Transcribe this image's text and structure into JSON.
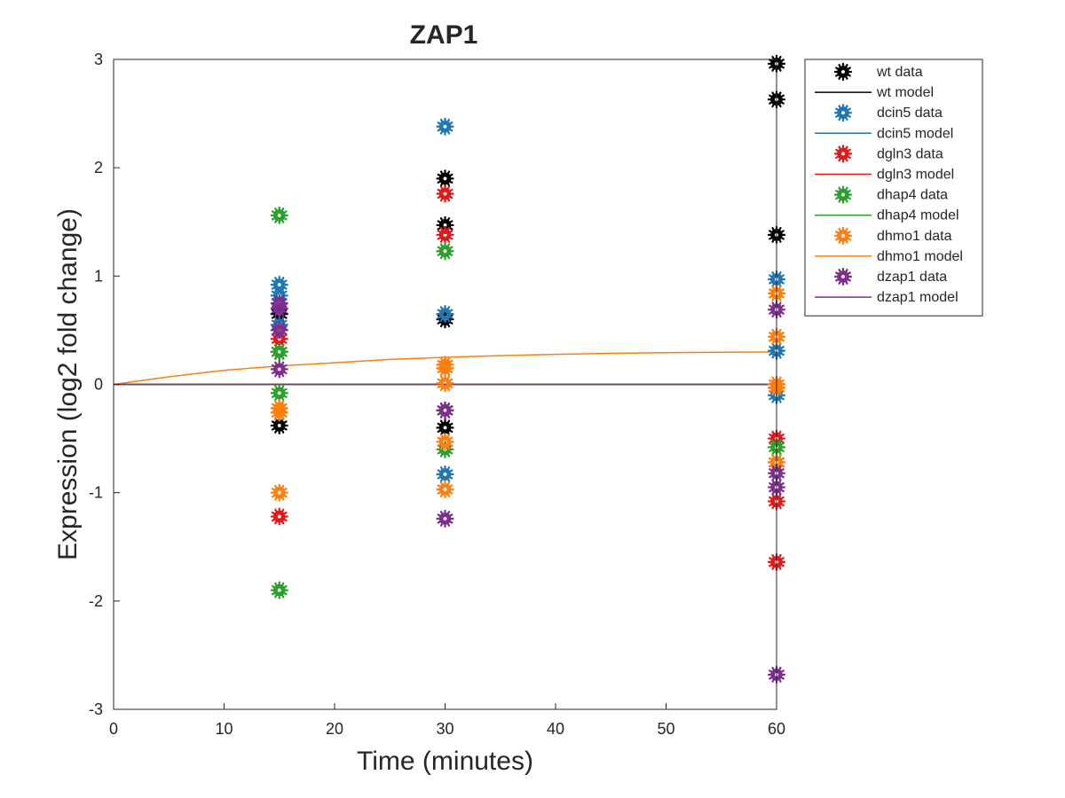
{
  "chart_data": {
    "type": "scatter",
    "title": "ZAP1",
    "xlabel": "Time (minutes)",
    "ylabel": "Expression (log2 fold change)",
    "xlim": [
      0,
      60
    ],
    "ylim": [
      -3,
      3
    ],
    "xticks": [
      0,
      10,
      20,
      30,
      40,
      50,
      60
    ],
    "yticks": [
      -3,
      -2,
      -1,
      0,
      1,
      2,
      3
    ],
    "grid": false,
    "legend_position": "outside-top-right",
    "series": [
      {
        "name": "wt data",
        "kind": "markers",
        "color": "#000000",
        "points": [
          [
            15,
            0.65
          ],
          [
            15,
            0.3
          ],
          [
            15,
            -0.38
          ],
          [
            30,
            1.9
          ],
          [
            30,
            1.47
          ],
          [
            30,
            0.6
          ],
          [
            30,
            -0.24
          ],
          [
            30,
            -0.4
          ],
          [
            60,
            2.96
          ],
          [
            60,
            2.63
          ],
          [
            60,
            1.38
          ],
          [
            60,
            -0.72
          ]
        ]
      },
      {
        "name": "wt model",
        "kind": "line",
        "color": "#000000",
        "points": [
          [
            0,
            0
          ],
          [
            60,
            0
          ]
        ]
      },
      {
        "name": "dcin5 data",
        "kind": "markers",
        "color": "#1f77b4",
        "points": [
          [
            15,
            0.92
          ],
          [
            15,
            0.82
          ],
          [
            15,
            0.55
          ],
          [
            30,
            2.38
          ],
          [
            30,
            0.65
          ],
          [
            30,
            -0.83
          ],
          [
            60,
            0.97
          ],
          [
            60,
            0.31
          ],
          [
            60,
            -0.1
          ]
        ]
      },
      {
        "name": "dcin5 model",
        "kind": "line",
        "color": "#1f77b4",
        "points": [
          [
            0,
            0
          ],
          [
            60,
            0
          ]
        ]
      },
      {
        "name": "dgln3 data",
        "kind": "markers",
        "color": "#e3191c",
        "points": [
          [
            15,
            0.5
          ],
          [
            15,
            0.42
          ],
          [
            15,
            -1.22
          ],
          [
            30,
            1.76
          ],
          [
            30,
            1.38
          ],
          [
            60,
            -0.5
          ],
          [
            60,
            -1.08
          ],
          [
            60,
            -1.64
          ]
        ]
      },
      {
        "name": "dgln3 model",
        "kind": "line",
        "color": "#e3191c",
        "points": [
          [
            0,
            0
          ],
          [
            60,
            0
          ]
        ]
      },
      {
        "name": "dhap4 data",
        "kind": "markers",
        "color": "#2ca02c",
        "points": [
          [
            15,
            1.56
          ],
          [
            15,
            0.3
          ],
          [
            15,
            -0.08
          ],
          [
            15,
            -1.9
          ],
          [
            30,
            1.23
          ],
          [
            30,
            -0.6
          ],
          [
            60,
            -0.58
          ]
        ]
      },
      {
        "name": "dhap4 model",
        "kind": "line",
        "color": "#2ca02c",
        "points": [
          [
            0,
            0
          ],
          [
            60,
            0
          ]
        ]
      },
      {
        "name": "dhmo1 data",
        "kind": "markers",
        "color": "#ff7f0e",
        "points": [
          [
            15,
            -0.22
          ],
          [
            15,
            -0.26
          ],
          [
            15,
            -1.0
          ],
          [
            30,
            0.18
          ],
          [
            30,
            0.15
          ],
          [
            30,
            0.01
          ],
          [
            30,
            -0.53
          ],
          [
            30,
            -0.97
          ],
          [
            60,
            0.84
          ],
          [
            60,
            0.44
          ],
          [
            60,
            0.0
          ],
          [
            60,
            -0.03
          ],
          [
            60,
            -0.72
          ]
        ]
      },
      {
        "name": "dhmo1 model",
        "kind": "line",
        "color": "#ff7f0e",
        "points": [
          [
            0,
            0
          ],
          [
            5,
            0.07
          ],
          [
            10,
            0.13
          ],
          [
            15,
            0.17
          ],
          [
            20,
            0.2
          ],
          [
            25,
            0.23
          ],
          [
            30,
            0.25
          ],
          [
            35,
            0.265
          ],
          [
            40,
            0.277
          ],
          [
            45,
            0.286
          ],
          [
            50,
            0.293
          ],
          [
            55,
            0.297
          ],
          [
            60,
            0.3
          ]
        ]
      },
      {
        "name": "dzap1 data",
        "kind": "markers",
        "color": "#7e2f8e",
        "points": [
          [
            15,
            0.75
          ],
          [
            15,
            0.7
          ],
          [
            15,
            0.5
          ],
          [
            15,
            0.14
          ],
          [
            30,
            -0.24
          ],
          [
            30,
            -1.24
          ],
          [
            60,
            0.69
          ],
          [
            60,
            -0.82
          ],
          [
            60,
            -0.95
          ],
          [
            60,
            -2.68
          ]
        ]
      },
      {
        "name": "dzap1 model",
        "kind": "line",
        "color": "#7e2f8e",
        "points": [
          [
            0,
            0
          ],
          [
            60,
            0
          ]
        ]
      }
    ]
  }
}
